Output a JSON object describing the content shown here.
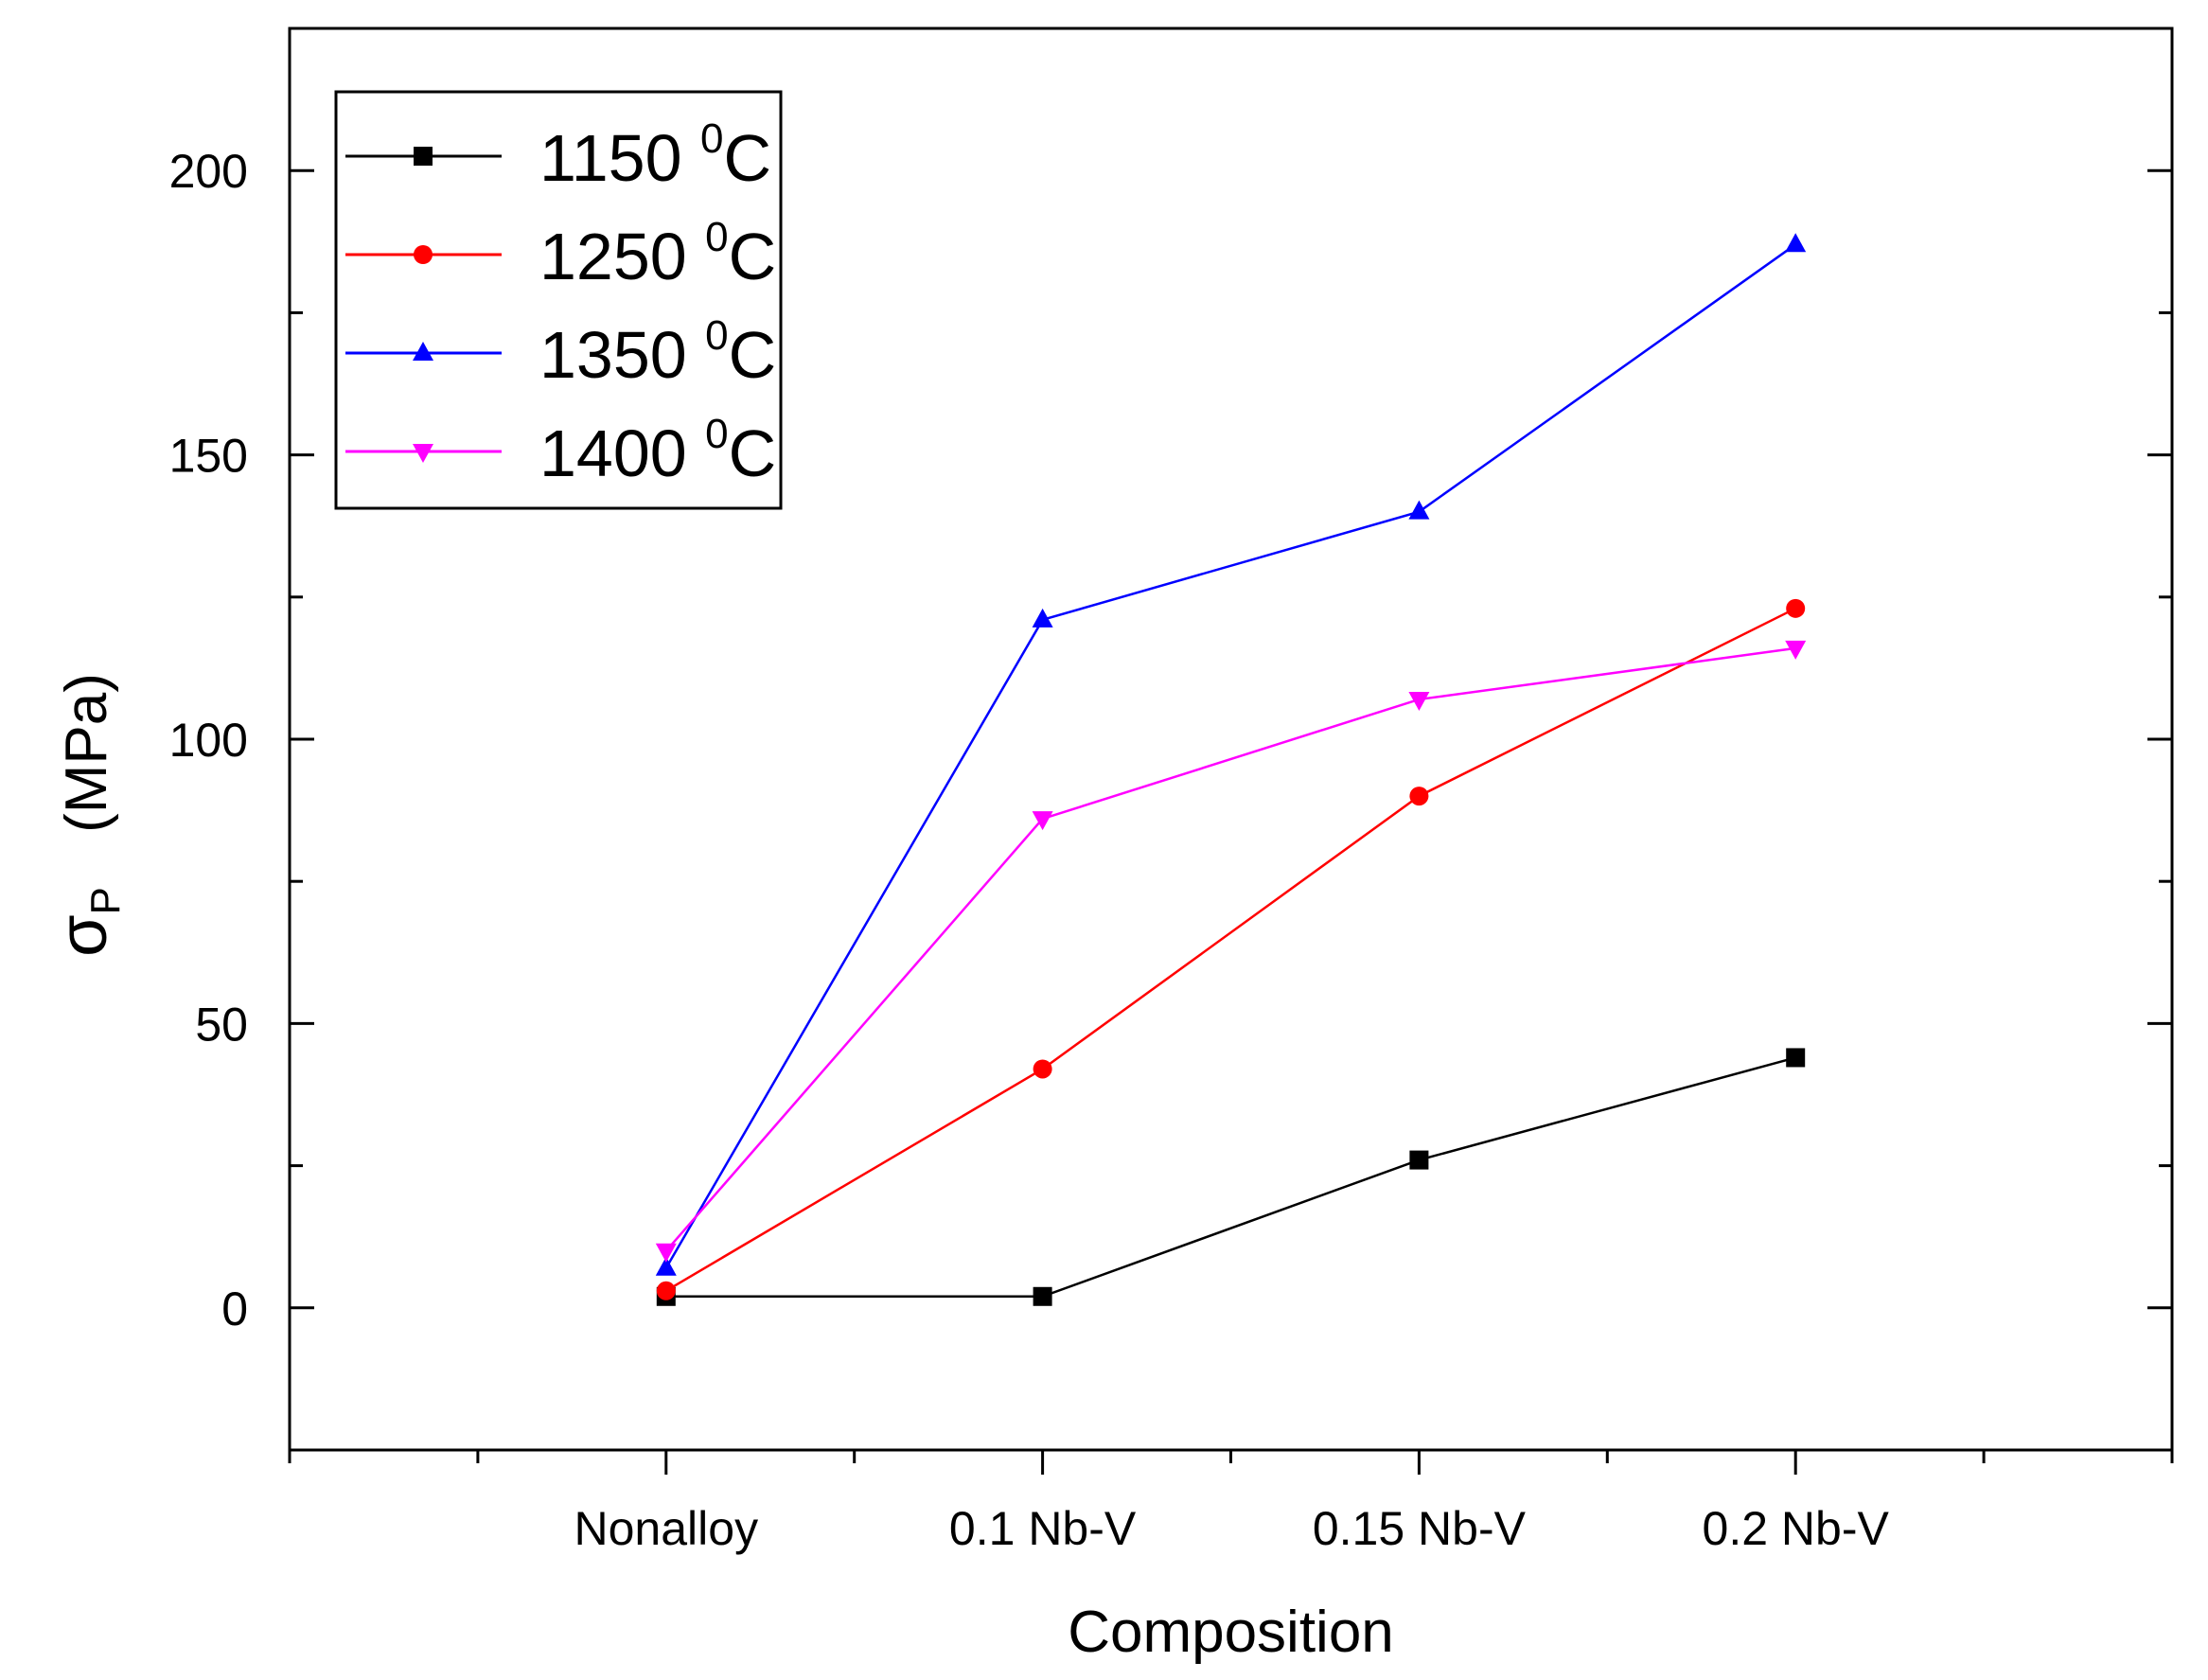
{
  "chart_data": {
    "type": "line",
    "title": "",
    "xlabel": "Composition",
    "ylabel_symbol": "σ",
    "ylabel_subscript": "P",
    "ylabel_unit": "(MPa)",
    "categories": [
      "Nonalloy",
      "0.1 Nb-V",
      "0.15 Nb-V",
      "0.2 Nb-V"
    ],
    "ylim": [
      -25,
      225
    ],
    "yticks": [
      0,
      50,
      100,
      150,
      200
    ],
    "ytick_labels": [
      "0",
      "50",
      "100",
      "150",
      "200"
    ],
    "legend_position": "top-left",
    "series": [
      {
        "name": "1150",
        "unit_sup": "0",
        "unit": "C",
        "color": "#000000",
        "marker": "square",
        "values": [
          2,
          2,
          26,
          44
        ]
      },
      {
        "name": "1250",
        "unit_sup": "0",
        "unit": "C",
        "color": "#ff0000",
        "marker": "circle",
        "values": [
          3,
          42,
          90,
          123
        ]
      },
      {
        "name": "1350",
        "unit_sup": "0",
        "unit": "C",
        "color": "#0000ff",
        "marker": "triangle-up",
        "values": [
          7,
          121,
          140,
          187
        ]
      },
      {
        "name": "1400",
        "unit_sup": "0",
        "unit": "C",
        "color": "#ff00ff",
        "marker": "triangle-down",
        "values": [
          10,
          86,
          107,
          116
        ]
      }
    ]
  }
}
